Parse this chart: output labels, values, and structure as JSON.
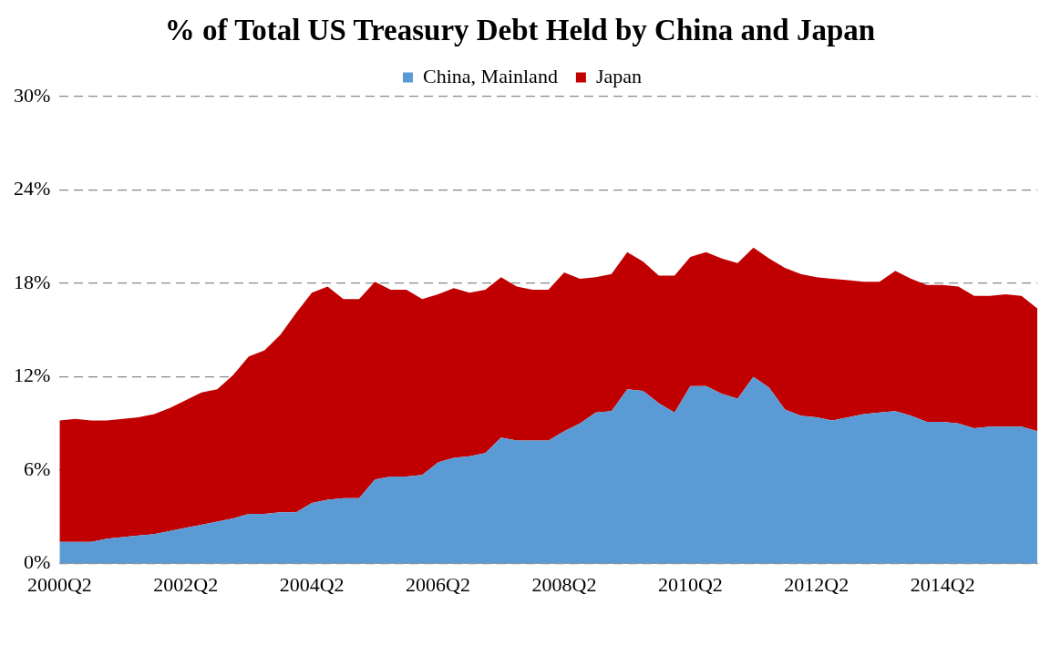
{
  "chart_data": {
    "type": "area",
    "title": "% of Total US Treasury Debt Held by China and Japan",
    "categories": [
      "2000Q2",
      null,
      null,
      null,
      null,
      null,
      null,
      null,
      "2002Q2",
      null,
      null,
      null,
      null,
      null,
      null,
      null,
      "2004Q2",
      null,
      null,
      null,
      null,
      null,
      null,
      null,
      "2006Q2",
      null,
      null,
      null,
      null,
      null,
      null,
      null,
      "2008Q2",
      null,
      null,
      null,
      null,
      null,
      null,
      null,
      "2010Q2",
      null,
      null,
      null,
      null,
      null,
      null,
      null,
      "2012Q2",
      null,
      null,
      null,
      null,
      null,
      null,
      null,
      "2014Q2",
      null,
      null,
      null,
      null,
      null,
      null
    ],
    "stacked": true,
    "series": [
      {
        "name": "China, Mainland",
        "color": "#5b9bd5",
        "values": [
          1.4,
          1.4,
          1.4,
          1.6,
          1.7,
          1.8,
          1.9,
          2.1,
          2.3,
          2.5,
          2.7,
          2.9,
          3.2,
          3.2,
          3.3,
          3.3,
          3.9,
          4.1,
          4.2,
          4.2,
          5.4,
          5.6,
          5.6,
          5.7,
          6.5,
          6.8,
          6.9,
          7.1,
          8.1,
          7.9,
          7.9,
          7.9,
          8.5,
          9.0,
          9.7,
          9.8,
          11.2,
          11.1,
          10.3,
          9.7,
          11.4,
          11.4,
          10.9,
          10.6,
          12.0,
          11.3,
          9.9,
          9.5,
          9.4,
          9.2,
          9.4,
          9.6,
          9.7,
          9.8,
          9.5,
          9.1,
          9.1,
          9.0,
          8.7,
          8.8,
          8.8,
          8.8,
          8.5
        ]
      },
      {
        "name": "Japan",
        "color": "#c00000",
        "values": [
          7.8,
          7.9,
          7.8,
          7.6,
          7.6,
          7.6,
          7.7,
          7.9,
          8.2,
          8.5,
          8.5,
          9.2,
          10.1,
          10.5,
          11.4,
          12.8,
          13.5,
          13.7,
          12.8,
          12.8,
          12.7,
          12.0,
          12.0,
          11.3,
          10.8,
          10.9,
          10.5,
          10.5,
          10.3,
          9.9,
          9.7,
          9.7,
          10.2,
          9.3,
          8.7,
          8.8,
          8.8,
          8.3,
          8.2,
          8.8,
          8.3,
          8.6,
          8.7,
          8.7,
          8.3,
          8.3,
          9.1,
          9.1,
          9.0,
          9.1,
          8.8,
          8.5,
          8.4,
          9.0,
          8.8,
          8.8,
          8.8,
          8.8,
          8.5,
          8.4,
          8.5,
          8.4,
          7.9
        ]
      }
    ],
    "ylim": [
      0,
      30
    ],
    "yticks": [
      {
        "value": 0,
        "label": "0%"
      },
      {
        "value": 6,
        "label": "6%"
      },
      {
        "value": 12,
        "label": "12%"
      },
      {
        "value": 18,
        "label": "18%"
      },
      {
        "value": 24,
        "label": "24%"
      },
      {
        "value": 30,
        "label": "30%"
      }
    ],
    "grid": "y",
    "legend": "top",
    "marker": "none"
  }
}
